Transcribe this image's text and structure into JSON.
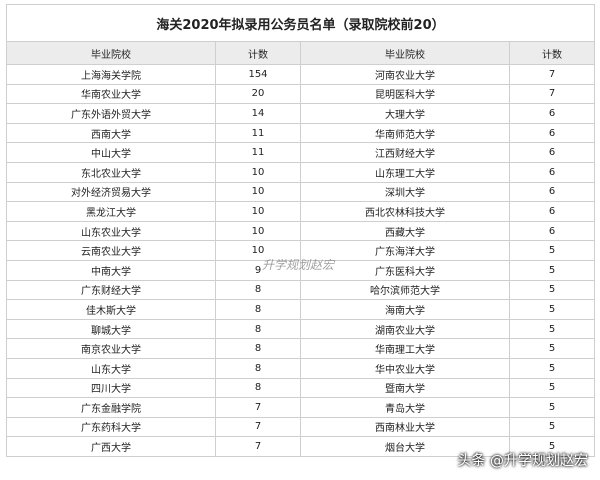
{
  "title": "海关2020年拟录用公务员名单（录取院校前20）",
  "table": {
    "header": [
      "毕业院校",
      "计数",
      "毕业院校",
      "计数"
    ],
    "rows": [
      [
        "上海海关学院",
        154,
        "河南农业大学",
        7
      ],
      [
        "华南农业大学",
        20,
        "昆明医科大学",
        7
      ],
      [
        "广东外语外贸大学",
        14,
        "大理大学",
        6
      ],
      [
        "西南大学",
        11,
        "华南师范大学",
        6
      ],
      [
        "中山大学",
        11,
        "江西财经大学",
        6
      ],
      [
        "东北农业大学",
        10,
        "山东理工大学",
        6
      ],
      [
        "对外经济贸易大学",
        10,
        "深圳大学",
        6
      ],
      [
        "黑龙江大学",
        10,
        "西北农林科技大学",
        6
      ],
      [
        "山东农业大学",
        10,
        "西藏大学",
        6
      ],
      [
        "云南农业大学",
        10,
        "广东海洋大学",
        5
      ],
      [
        "中南大学",
        9,
        "广东医科大学",
        5
      ],
      [
        "广东财经大学",
        8,
        "哈尔滨师范大学",
        5
      ],
      [
        "佳木斯大学",
        8,
        "海南大学",
        5
      ],
      [
        "聊城大学",
        8,
        "湖南农业大学",
        5
      ],
      [
        "南京农业大学",
        8,
        "华南理工大学",
        5
      ],
      [
        "山东大学",
        8,
        "华中农业大学",
        5
      ],
      [
        "四川大学",
        8,
        "暨南大学",
        5
      ],
      [
        "广东金融学院",
        7,
        "青岛大学",
        5
      ],
      [
        "广东药科大学",
        7,
        "西南林业大学",
        5
      ],
      [
        "广西大学",
        7,
        "烟台大学",
        5
      ]
    ]
  },
  "watermark": "升学规划赵宏",
  "source": "头条 @升学规划赵宏"
}
